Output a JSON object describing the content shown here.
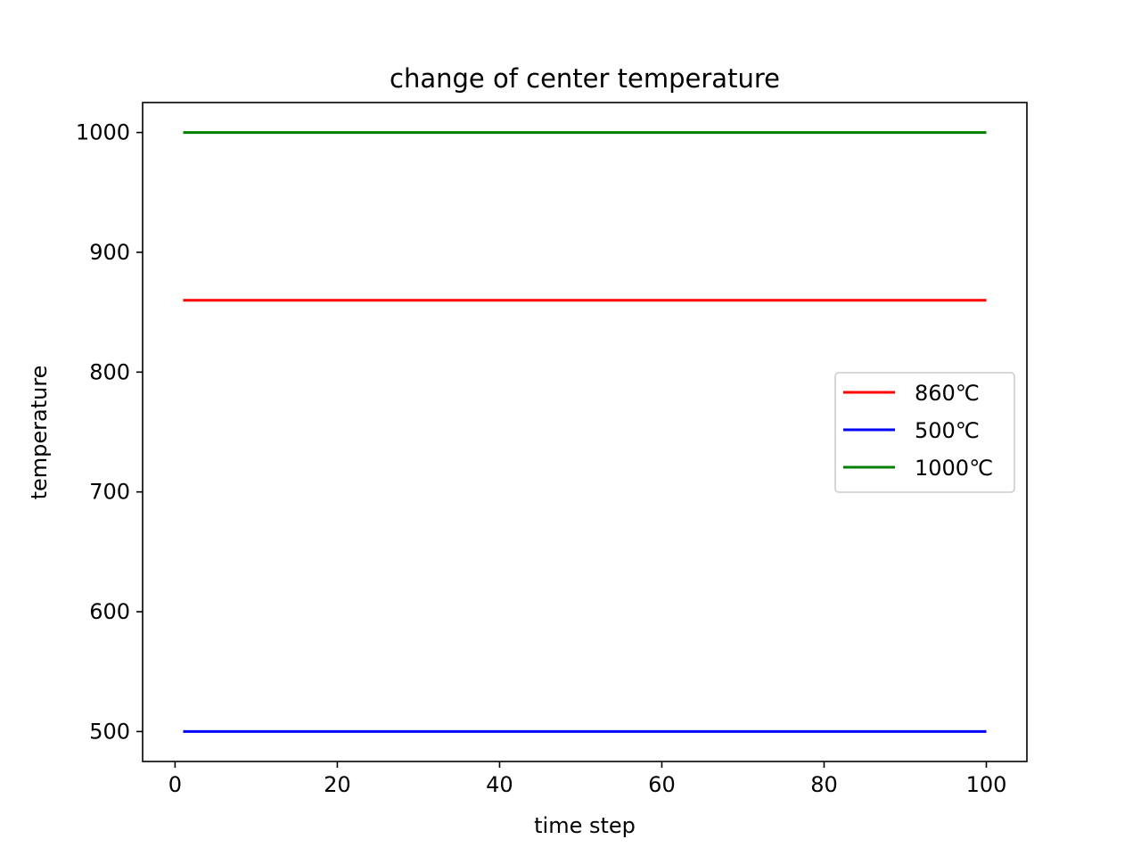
{
  "chart_data": {
    "type": "line",
    "title": "change of center temperature",
    "xlabel": "time step",
    "ylabel": "temperature",
    "xlim": [
      -4,
      105
    ],
    "ylim": [
      475,
      1025
    ],
    "x_ticks": [
      0,
      20,
      40,
      60,
      80,
      100
    ],
    "y_ticks": [
      500,
      600,
      700,
      800,
      900,
      1000
    ],
    "x_range": [
      1,
      100
    ],
    "grid": false,
    "legend_position": "center-right",
    "series": [
      {
        "name": "860℃",
        "color": "#ff0000",
        "x": [
          1,
          100
        ],
        "y": [
          860,
          860
        ]
      },
      {
        "name": "500℃",
        "color": "#0000ff",
        "x": [
          1,
          100
        ],
        "y": [
          500,
          500
        ]
      },
      {
        "name": "1000℃",
        "color": "#008000",
        "x": [
          1,
          100
        ],
        "y": [
          1000,
          1000
        ]
      }
    ]
  }
}
